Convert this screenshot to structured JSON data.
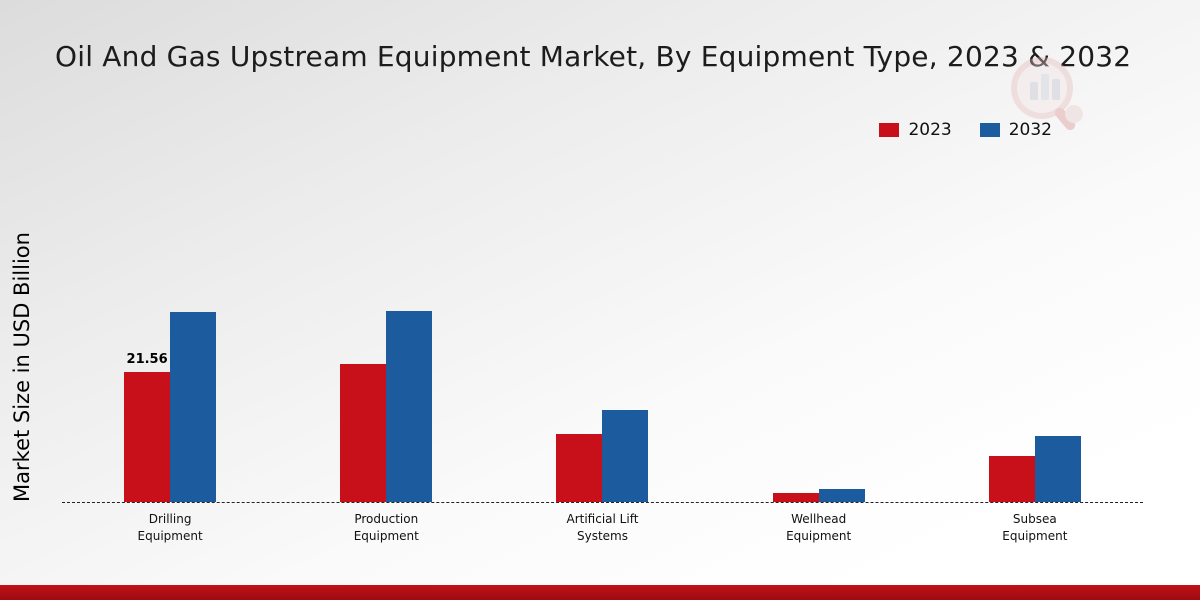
{
  "page": {
    "title": "Oil And Gas Upstream Equipment Market, By Equipment Type, 2023 & 2032",
    "ylabel": "Market Size in USD Billion"
  },
  "chart_data": {
    "type": "bar",
    "title": "Oil And Gas Upstream Equipment Market, By Equipment Type, 2023 & 2032",
    "xlabel": "",
    "ylabel": "Market Size in USD Billion",
    "categories": [
      "Drilling Equipment",
      "Production Equipment",
      "Artificial Lift Systems",
      "Wellhead Equipment",
      "Subsea Equipment"
    ],
    "series": [
      {
        "name": "2023",
        "color": "#c8101b",
        "values": [
          21.56,
          22.9,
          11.2,
          1.5,
          7.7
        ]
      },
      {
        "name": "2032",
        "color": "#1b5b9e",
        "values": [
          31.5,
          31.7,
          15.3,
          2.1,
          11.0
        ]
      }
    ],
    "data_labels": [
      {
        "series": "2023",
        "category_index": 0,
        "text": "21.56"
      }
    ],
    "ylim": [
      0,
      60
    ],
    "grid": false,
    "legend_position": "top-right",
    "baseline": "dashed-zero-line"
  },
  "colors": {
    "series_2023": "#c8101b",
    "series_2032": "#1b5b9e",
    "footer_band": "#b00e13"
  },
  "icons": {
    "watermark": "magnifier-bar-chart-logo"
  }
}
